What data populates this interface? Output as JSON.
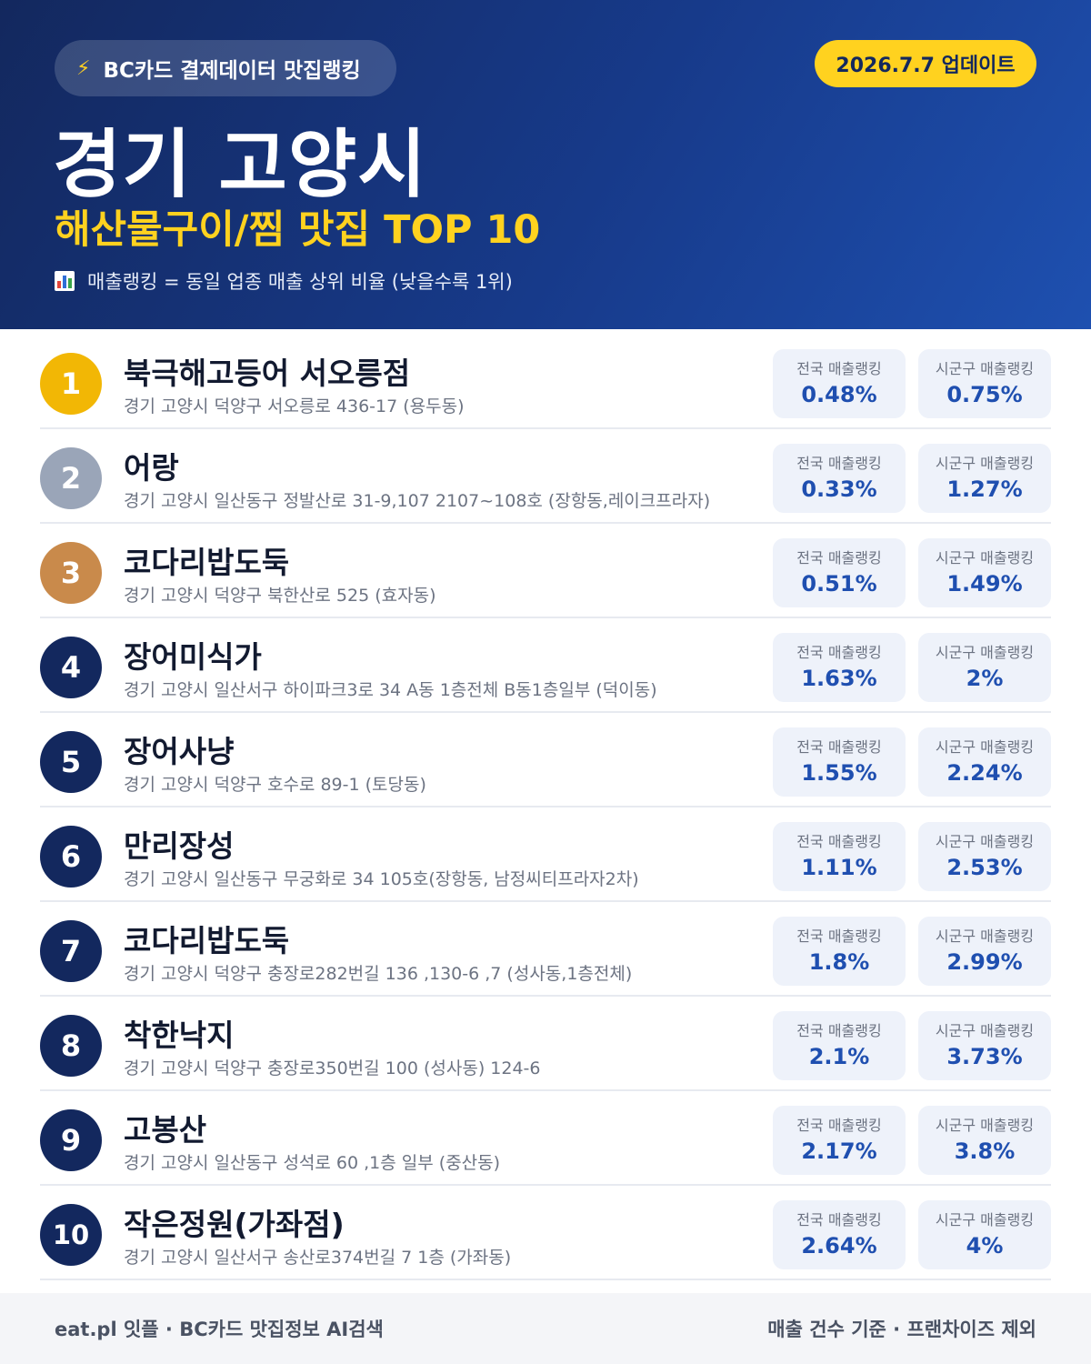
{
  "header": {
    "source_label": "BC카드 결제데이터 맛집랭킹",
    "update_label": "2026.7.7 업데이트",
    "region_title": "경기 고양시",
    "category_title": "해산물구이/찜 맛집 TOP 10",
    "rank_note": "매출랭킹 = 동일 업종 매출 상위 비율 (낮을수록 1위)",
    "icons": [
      "lightning-icon",
      "bar-chart-icon"
    ]
  },
  "stat_labels": {
    "national": "전국 매출랭킹",
    "district": "시군구 매출랭킹"
  },
  "colors": {
    "gold": "#f2b705",
    "silver": "#9aa5b8",
    "bronze": "#c98a4b",
    "navy": "#13285e",
    "accent": "#ffd21f",
    "value": "#1f4fb0"
  },
  "restaurants": [
    {
      "rank": "1",
      "name": "북극해고등어 서오릉점",
      "address": "경기 고양시 덕양구 서오릉로 436-17 (용두동)",
      "national": "0.48%",
      "district": "0.75%"
    },
    {
      "rank": "2",
      "name": "어랑",
      "address": "경기 고양시 일산동구 정발산로 31-9,107 2107~108호 (장항동,레이크프라자)",
      "national": "0.33%",
      "district": "1.27%"
    },
    {
      "rank": "3",
      "name": "코다리밥도둑",
      "address": "경기 고양시 덕양구 북한산로 525 (효자동)",
      "national": "0.51%",
      "district": "1.49%"
    },
    {
      "rank": "4",
      "name": "장어미식가",
      "address": "경기 고양시 일산서구 하이파크3로 34 A동 1층전체 B동1층일부 (덕이동)",
      "national": "1.63%",
      "district": "2%"
    },
    {
      "rank": "5",
      "name": "장어사냥",
      "address": "경기 고양시 덕양구 호수로 89-1 (토당동)",
      "national": "1.55%",
      "district": "2.24%"
    },
    {
      "rank": "6",
      "name": "만리장성",
      "address": "경기 고양시 일산동구 무궁화로 34 105호(장항동, 남정씨티프라자2차)",
      "national": "1.11%",
      "district": "2.53%"
    },
    {
      "rank": "7",
      "name": "코다리밥도둑",
      "address": "경기 고양시 덕양구 충장로282번길 136 ,130-6 ,7 (성사동,1층전체)",
      "national": "1.8%",
      "district": "2.99%"
    },
    {
      "rank": "8",
      "name": "착한낙지",
      "address": "경기 고양시 덕양구 충장로350번길 100 (성사동) 124-6",
      "national": "2.1%",
      "district": "3.73%"
    },
    {
      "rank": "9",
      "name": "고봉산",
      "address": "경기 고양시 일산동구 성석로 60 ,1층 일부 (중산동)",
      "national": "2.17%",
      "district": "3.8%"
    },
    {
      "rank": "10",
      "name": "작은정원(가좌점)",
      "address": "경기 고양시 일산서구 송산로374번길 7 1층 (가좌동)",
      "national": "2.64%",
      "district": "4%"
    }
  ],
  "footer": {
    "left": "eat.pl 잇플 · BC카드 맛집정보 AI검색",
    "right": "매출 건수 기준 · 프랜차이즈 제외"
  }
}
